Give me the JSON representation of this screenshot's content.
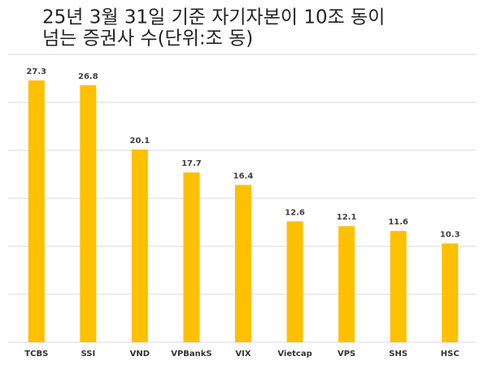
{
  "chart_data": {
    "type": "bar",
    "title": [
      "25년 3월 31일 기준 자기자본이 10조 동이",
      "넘는 증권사 수(단위:조 동)"
    ],
    "categories": [
      "TCBS",
      "SSI",
      "VND",
      "VPBankS",
      "VIX",
      "Vietcap",
      "VPS",
      "SHS",
      "HSC"
    ],
    "values": [
      27.3,
      26.8,
      20.1,
      17.7,
      16.4,
      12.6,
      12.1,
      11.6,
      10.3
    ],
    "color": "#ffc000",
    "ylim": [
      0,
      30
    ],
    "yticks": [
      0,
      5,
      10,
      15,
      20,
      25,
      30
    ],
    "grid": true
  }
}
